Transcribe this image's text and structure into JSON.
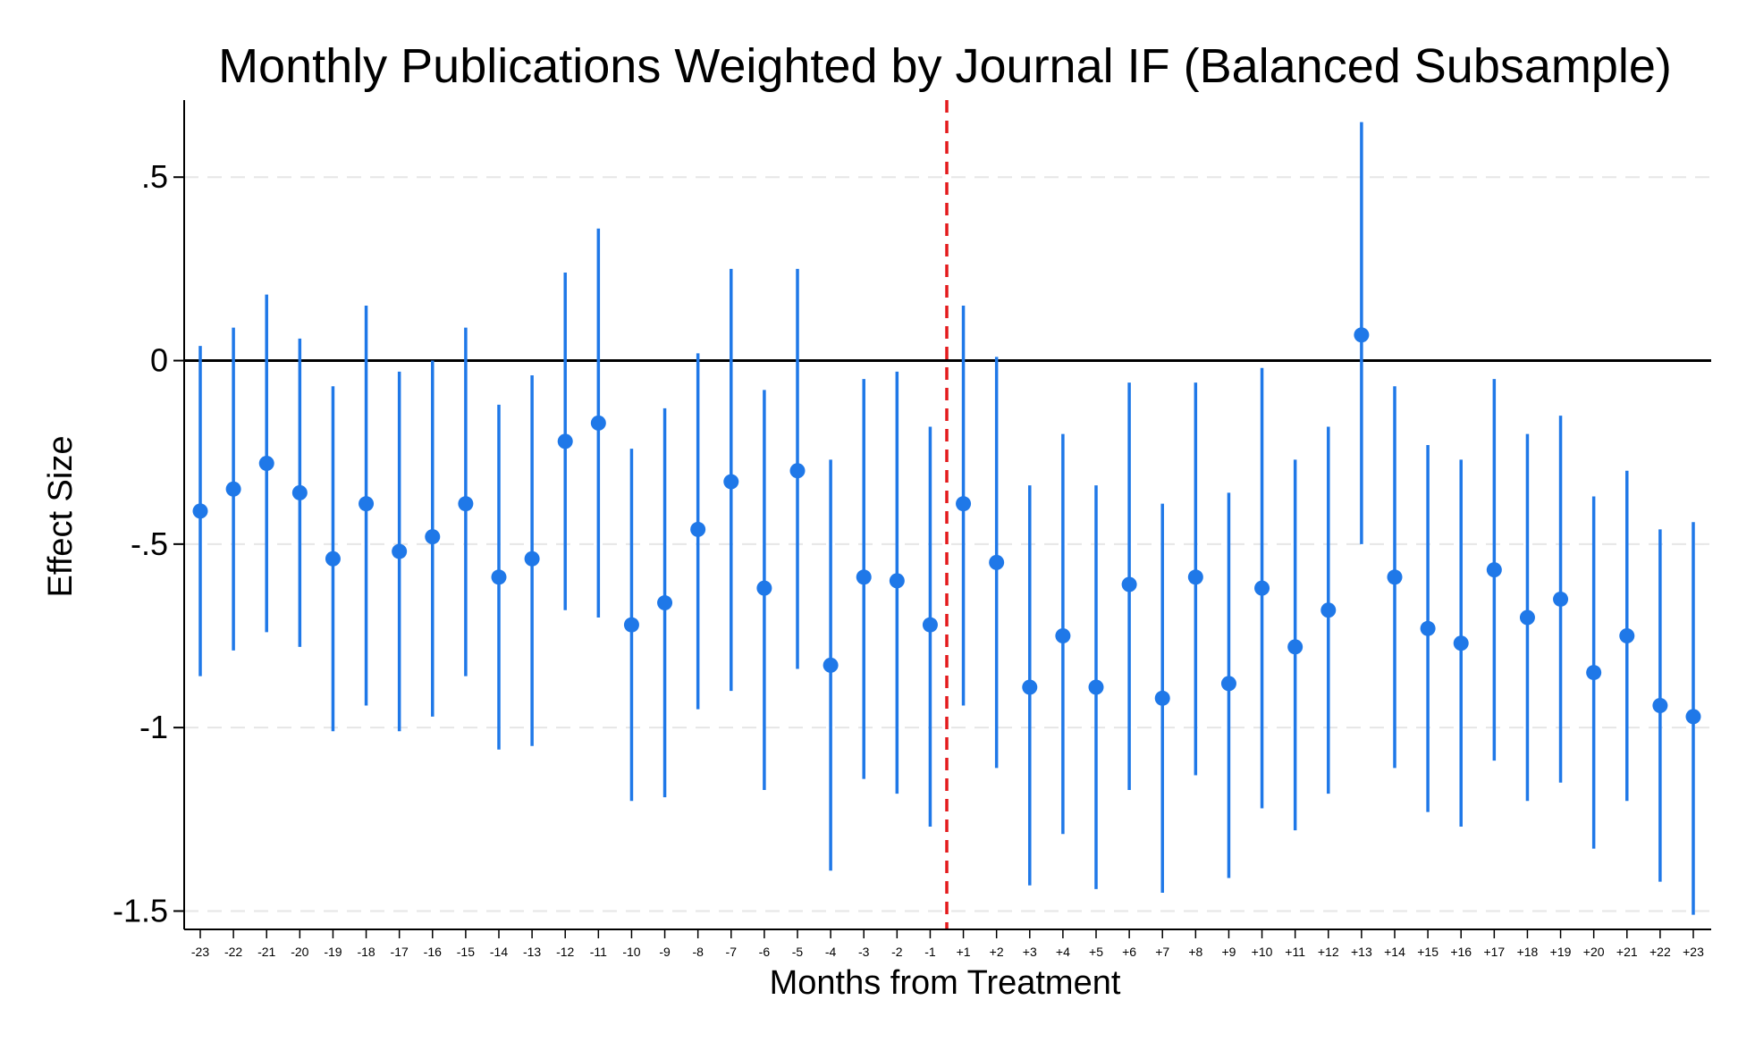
{
  "chart_data": {
    "type": "scatter",
    "title": "Monthly Publications Weighted by Journal IF (Balanced Subsample)",
    "xlabel": "Months from Treatment",
    "ylabel": "Effect Size",
    "ylim": [
      -1.55,
      0.71
    ],
    "yticks": [
      0.5,
      0,
      -0.5,
      -1,
      -1.5
    ],
    "ytick_labels": [
      ".5",
      "0",
      "-.5",
      "-1",
      "-1.5"
    ],
    "grid": true,
    "reference_line_y": 0,
    "treatment_marker": "dashed vertical line between -1 and +1",
    "categories": [
      "-23",
      "-22",
      "-21",
      "-20",
      "-19",
      "-18",
      "-17",
      "-16",
      "-15",
      "-14",
      "-13",
      "-12",
      "-11",
      "-10",
      "-9",
      "-8",
      "-7",
      "-6",
      "-5",
      "-4",
      "-3",
      "-2",
      "-1",
      "+1",
      "+2",
      "+3",
      "+4",
      "+5",
      "+6",
      "+7",
      "+8",
      "+9",
      "+10",
      "+11",
      "+12",
      "+13",
      "+14",
      "+15",
      "+16",
      "+17",
      "+18",
      "+19",
      "+20",
      "+21",
      "+22",
      "+23"
    ],
    "estimates": [
      -0.41,
      -0.35,
      -0.28,
      -0.36,
      -0.54,
      -0.39,
      -0.52,
      -0.48,
      -0.39,
      -0.59,
      -0.54,
      -0.22,
      -0.17,
      -0.72,
      -0.66,
      -0.46,
      -0.33,
      -0.62,
      -0.3,
      -0.83,
      -0.59,
      -0.6,
      -0.72,
      -0.39,
      -0.55,
      -0.89,
      -0.75,
      -0.89,
      -0.61,
      -0.92,
      -0.59,
      -0.88,
      -0.62,
      -0.78,
      -0.68,
      0.07,
      -0.59,
      -0.73,
      -0.77,
      -0.57,
      -0.7,
      -0.65,
      -0.85,
      -0.75,
      -0.94,
      -0.97
    ],
    "ci_lower": [
      -0.86,
      -0.79,
      -0.74,
      -0.78,
      -1.01,
      -0.94,
      -1.01,
      -0.97,
      -0.86,
      -1.06,
      -1.05,
      -0.68,
      -0.7,
      -1.2,
      -1.19,
      -0.95,
      -0.9,
      -1.17,
      -0.84,
      -1.39,
      -1.14,
      -1.18,
      -1.27,
      -0.94,
      -1.11,
      -1.43,
      -1.29,
      -1.44,
      -1.17,
      -1.45,
      -1.13,
      -1.41,
      -1.22,
      -1.28,
      -1.18,
      -0.5,
      -1.11,
      -1.23,
      -1.27,
      -1.09,
      -1.2,
      -1.15,
      -1.33,
      -1.2,
      -1.42,
      -1.51
    ],
    "ci_upper": [
      0.04,
      0.09,
      0.18,
      0.06,
      -0.07,
      0.15,
      -0.03,
      0.0,
      0.09,
      -0.12,
      -0.04,
      0.24,
      0.36,
      -0.24,
      -0.13,
      0.02,
      0.25,
      -0.08,
      0.25,
      -0.27,
      -0.05,
      -0.03,
      -0.18,
      0.15,
      0.01,
      -0.34,
      -0.2,
      -0.34,
      -0.06,
      -0.39,
      -0.06,
      -0.36,
      -0.02,
      -0.27,
      -0.18,
      0.65,
      -0.07,
      -0.23,
      -0.27,
      -0.05,
      -0.2,
      -0.15,
      -0.37,
      -0.3,
      -0.46,
      -0.44
    ],
    "colors": {
      "series": "#1f78e8",
      "treatment_line": "#e41a1c",
      "zero_line": "#000000",
      "grid": "#e6e6e6"
    }
  }
}
